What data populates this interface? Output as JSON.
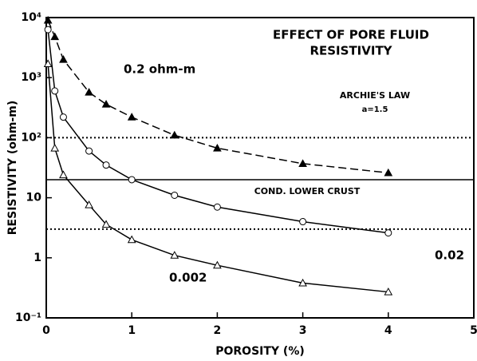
{
  "chart_data": {
    "type": "scatter",
    "title": [
      "EFFECT OF PORE FLUID",
      "RESISTIVITY"
    ],
    "xlabel": "POROSITY (%)",
    "ylabel": "RESISTIVITY (ohm-m)",
    "log_y": true,
    "xlim": [
      0,
      5
    ],
    "ylim": [
      0.1,
      10000
    ],
    "xticks": [
      0,
      1,
      2,
      3,
      4,
      5
    ],
    "yticks": [
      {
        "value": 0.1,
        "label": "10⁻¹"
      },
      1,
      10,
      {
        "value": 100,
        "label": "10²"
      },
      {
        "value": 1000,
        "label": "10³"
      },
      {
        "value": 10000,
        "label": "10⁴"
      }
    ],
    "annotations": [
      "ARCHIE'S LAW",
      "a=1.5",
      "COND. LOWER CRUST"
    ],
    "reference_lines": [
      {
        "value": 100,
        "style": "dotted"
      },
      {
        "value": 20,
        "style": "solid"
      },
      {
        "value": 3,
        "style": "dotted"
      }
    ],
    "series": [
      {
        "name": "0.2 ohm-m",
        "color": "#000000",
        "marker": "filled-triangle",
        "line": "dashed",
        "x": [
          0.02,
          0.1,
          0.2,
          0.5,
          0.7,
          1,
          1.5,
          2,
          3,
          4
        ],
        "values": [
          9000,
          4800,
          2000,
          570,
          360,
          220,
          110,
          67,
          37,
          26
        ]
      },
      {
        "name": "0.02",
        "color": "#000000",
        "marker": "open-circle",
        "line": "solid",
        "x": [
          0.02,
          0.1,
          0.2,
          0.5,
          0.7,
          1,
          1.5,
          2,
          3,
          4
        ],
        "values": [
          6300,
          600,
          220,
          60,
          35,
          20,
          11,
          7,
          4,
          2.6
        ]
      },
      {
        "name": "0.002",
        "color": "#000000",
        "marker": "open-triangle",
        "line": "solid",
        "x": [
          0.02,
          0.1,
          0.2,
          0.5,
          0.7,
          1,
          1.5,
          2,
          3,
          4
        ],
        "values": [
          1700,
          67,
          24,
          7.6,
          3.6,
          2,
          1.1,
          0.75,
          0.38,
          0.27
        ]
      }
    ]
  }
}
